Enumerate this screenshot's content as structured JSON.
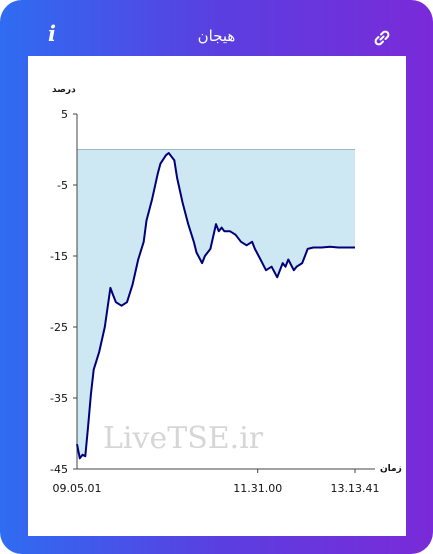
{
  "header": {
    "title": "هیجان",
    "info_icon": "info-icon",
    "link_icon": "link-icon"
  },
  "colors": {
    "gradient_start": "#2f6cf2",
    "gradient_end": "#7a2ad8",
    "line": "#00007a",
    "fill": "#cde8f2"
  },
  "chart_data": {
    "type": "area",
    "ylabel": "درصد",
    "xlabel": "زمان",
    "watermark": "LiveTSE.ir",
    "y_ticks": [
      "5",
      "-5",
      "-15",
      "-25",
      "-35",
      "-45"
    ],
    "x_ticks": [
      "09.05.01",
      "11.31.00",
      "13.13.41"
    ],
    "ylim": [
      -45,
      5
    ],
    "xlim": [
      0,
      1
    ],
    "baseline": 0,
    "x": [
      0.0,
      0.01,
      0.02,
      0.03,
      0.04,
      0.05,
      0.06,
      0.08,
      0.1,
      0.12,
      0.13,
      0.14,
      0.16,
      0.18,
      0.2,
      0.22,
      0.24,
      0.25,
      0.27,
      0.29,
      0.3,
      0.32,
      0.33,
      0.35,
      0.36,
      0.38,
      0.4,
      0.42,
      0.43,
      0.45,
      0.46,
      0.48,
      0.5,
      0.51,
      0.52,
      0.53,
      0.55,
      0.57,
      0.59,
      0.61,
      0.63,
      0.64,
      0.66,
      0.68,
      0.7,
      0.72,
      0.74,
      0.75,
      0.76,
      0.78,
      0.79,
      0.81,
      0.83,
      0.85,
      0.88,
      0.91,
      0.94,
      1.0
    ],
    "values": [
      -41.5,
      -43.5,
      -43.0,
      -43.2,
      -39.0,
      -34.5,
      -31.0,
      -28.5,
      -25.0,
      -19.5,
      -20.5,
      -21.5,
      -22.0,
      -21.5,
      -19.0,
      -15.5,
      -13.0,
      -10.0,
      -7.0,
      -3.5,
      -2.0,
      -0.8,
      -0.5,
      -1.5,
      -4.0,
      -7.5,
      -10.5,
      -13.0,
      -14.5,
      -16.0,
      -15.0,
      -14.0,
      -10.5,
      -11.5,
      -11.0,
      -11.5,
      -11.5,
      -12.0,
      -13.0,
      -13.5,
      -13.0,
      -14.0,
      -15.5,
      -17.0,
      -16.5,
      -18.0,
      -16.0,
      -16.5,
      -15.5,
      -17.0,
      -16.5,
      -16.0,
      -14.0,
      -13.8,
      -13.8,
      -13.7,
      -13.8,
      -13.8
    ]
  }
}
